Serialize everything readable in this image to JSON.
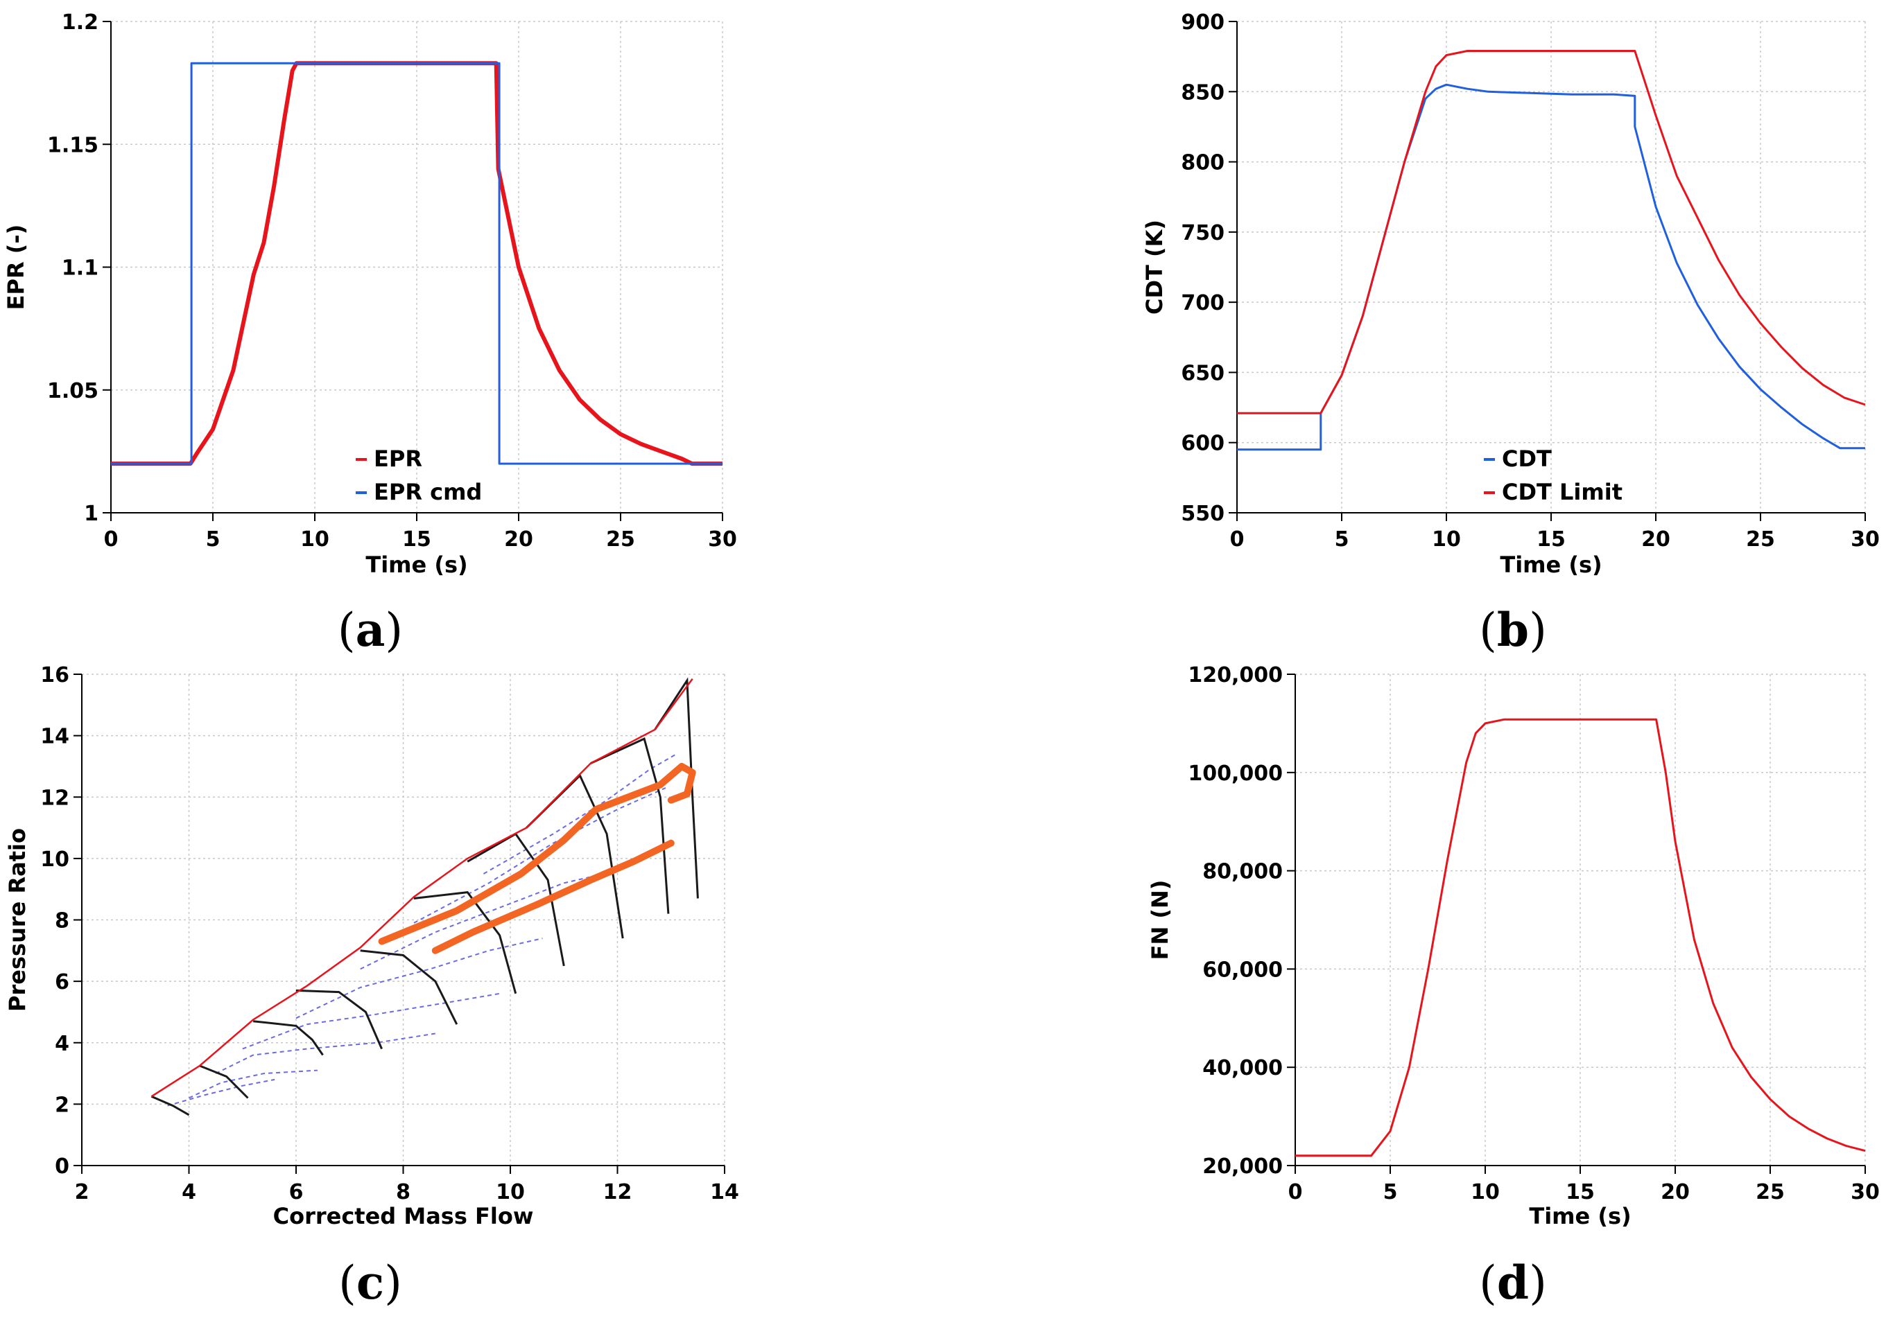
{
  "figure": {
    "panel_labels": [
      {
        "open": "(",
        "letter": "a",
        "close": ")"
      },
      {
        "open": "(",
        "letter": "b",
        "close": ")"
      },
      {
        "open": "(",
        "letter": "c",
        "close": ")"
      },
      {
        "open": "(",
        "letter": "d",
        "close": ")"
      }
    ]
  },
  "chart_data": [
    {
      "id": "a",
      "type": "line",
      "title": "",
      "xlabel": "Time (s)",
      "ylabel": "EPR (-)",
      "xlim": [
        0,
        30
      ],
      "ylim": [
        1,
        1.2
      ],
      "xticks": [
        0,
        5,
        10,
        15,
        20,
        25,
        30
      ],
      "xtick_labels": [
        "0",
        "5",
        "10",
        "15",
        "20",
        "25",
        "30"
      ],
      "yticks": [
        1,
        1.05,
        1.1,
        1.15,
        1.2
      ],
      "ytick_labels": [
        "1",
        "1.05",
        "1.1",
        "1.15",
        "1.2"
      ],
      "grid": true,
      "legend": "bottom-center",
      "series": [
        {
          "name": "EPR",
          "color": "#e8141c",
          "x": [
            0,
            3.9,
            4.2,
            5,
            6,
            7,
            7.5,
            8,
            8.5,
            8.9,
            9.1,
            18.9,
            19.0,
            19.5,
            20,
            21,
            22,
            23,
            24,
            25,
            26,
            27,
            28,
            28.5,
            30
          ],
          "y": [
            1.02,
            1.02,
            1.024,
            1.034,
            1.058,
            1.097,
            1.11,
            1.133,
            1.16,
            1.18,
            1.183,
            1.183,
            1.14,
            1.12,
            1.1,
            1.075,
            1.058,
            1.046,
            1.038,
            1.032,
            1.028,
            1.025,
            1.022,
            1.02,
            1.02
          ]
        },
        {
          "name": "EPR cmd",
          "color": "#1f5fe0",
          "x": [
            0,
            3.95,
            3.95,
            19.05,
            19.05,
            30
          ],
          "y": [
            1.02,
            1.02,
            1.183,
            1.183,
            1.02,
            1.02
          ]
        }
      ]
    },
    {
      "id": "b",
      "type": "line",
      "title": "",
      "xlabel": "Time (s)",
      "ylabel": "CDT (K)",
      "xlim": [
        0,
        30
      ],
      "ylim": [
        550,
        900
      ],
      "xticks": [
        0,
        5,
        10,
        15,
        20,
        25,
        30
      ],
      "xtick_labels": [
        "0",
        "5",
        "10",
        "15",
        "20",
        "25",
        "30"
      ],
      "yticks": [
        550,
        600,
        650,
        700,
        750,
        800,
        850,
        900
      ],
      "ytick_labels": [
        "550",
        "600",
        "650",
        "700",
        "750",
        "800",
        "850",
        "900"
      ],
      "grid": true,
      "legend": "bottom-center",
      "series": [
        {
          "name": "CDT",
          "color": "#1f5fe0",
          "x": [
            0,
            4,
            4,
            5,
            6,
            7,
            8,
            9,
            9.5,
            10,
            11,
            12,
            14,
            16,
            18,
            19,
            19,
            20,
            21,
            22,
            23,
            24,
            25,
            26,
            27,
            28,
            28.8,
            30
          ],
          "y": [
            595,
            595,
            621,
            648,
            690,
            745,
            800,
            845,
            852,
            855,
            852,
            850,
            849,
            848,
            848,
            847,
            825,
            768,
            728,
            698,
            674,
            654,
            638,
            625,
            613,
            603,
            596,
            596
          ]
        },
        {
          "name": "CDT Limit",
          "color": "#e8141c",
          "x": [
            0,
            4,
            5,
            6,
            7,
            8,
            9,
            9.5,
            10,
            11,
            12,
            15,
            19,
            20,
            21,
            22,
            23,
            24,
            25,
            26,
            27,
            28,
            29,
            30
          ],
          "y": [
            621,
            621,
            648,
            690,
            745,
            800,
            850,
            868,
            876,
            879,
            879,
            879,
            879,
            833,
            790,
            760,
            730,
            705,
            685,
            668,
            653,
            641,
            632,
            627
          ]
        }
      ]
    },
    {
      "id": "c",
      "type": "line",
      "title": "",
      "xlabel": "Corrected Mass Flow",
      "ylabel": "Pressure Ratio",
      "xlim": [
        2,
        14
      ],
      "ylim": [
        0,
        16
      ],
      "xticks": [
        2,
        4,
        6,
        8,
        10,
        12,
        14
      ],
      "xtick_labels": [
        "2",
        "4",
        "6",
        "8",
        "10",
        "12",
        "14"
      ],
      "yticks": [
        0,
        2,
        4,
        6,
        8,
        10,
        12,
        14,
        16
      ],
      "ytick_labels": [
        "0",
        "2",
        "4",
        "6",
        "8",
        "10",
        "12",
        "14",
        "16"
      ],
      "grid": true,
      "legend": "none",
      "surge_line": {
        "color": "#e8141c",
        "x": [
          3.3,
          4.2,
          5.2,
          6.2,
          7.2,
          8.2,
          9.2,
          10.3,
          11.5,
          12.7,
          13.4
        ],
        "y": [
          2.25,
          3.25,
          4.75,
          5.85,
          7.1,
          8.75,
          10.0,
          11.0,
          13.1,
          14.2,
          15.85
        ]
      },
      "speed_lines": [
        {
          "x": [
            3.3,
            3.7,
            4.0
          ],
          "y": [
            2.25,
            1.95,
            1.65
          ]
        },
        {
          "x": [
            4.2,
            4.7,
            5.1
          ],
          "y": [
            3.25,
            2.9,
            2.2
          ]
        },
        {
          "x": [
            5.2,
            6.0,
            6.3,
            6.5
          ],
          "y": [
            4.7,
            4.55,
            4.1,
            3.6
          ]
        },
        {
          "x": [
            6.0,
            6.8,
            7.3,
            7.6
          ],
          "y": [
            5.7,
            5.65,
            5.0,
            3.8
          ]
        },
        {
          "x": [
            7.2,
            8.0,
            8.6,
            9.0
          ],
          "y": [
            7.0,
            6.85,
            6.0,
            4.6
          ]
        },
        {
          "x": [
            8.2,
            9.2,
            9.8,
            10.1
          ],
          "y": [
            8.7,
            8.9,
            7.5,
            5.6
          ]
        },
        {
          "x": [
            9.2,
            10.1,
            10.7,
            11.0
          ],
          "y": [
            9.9,
            10.8,
            9.3,
            6.5
          ]
        },
        {
          "x": [
            10.3,
            11.3,
            11.8,
            12.1
          ],
          "y": [
            11.0,
            12.7,
            10.8,
            7.4
          ]
        },
        {
          "x": [
            11.5,
            12.5,
            12.8,
            12.95
          ],
          "y": [
            13.1,
            13.9,
            12.0,
            8.2
          ]
        },
        {
          "x": [
            12.7,
            13.3,
            13.4,
            13.5
          ],
          "y": [
            14.2,
            15.8,
            12.0,
            8.7
          ]
        }
      ],
      "efficiency_contours": [
        {
          "x": [
            3.6,
            4.3,
            5.0,
            5.6
          ],
          "y": [
            1.95,
            2.3,
            2.6,
            2.8
          ]
        },
        {
          "x": [
            4.0,
            4.6,
            5.4,
            6.4
          ],
          "y": [
            2.2,
            2.7,
            3.0,
            3.1
          ]
        },
        {
          "x": [
            4.5,
            5.2,
            6.2,
            7.5,
            8.6
          ],
          "y": [
            3.0,
            3.6,
            3.8,
            4.0,
            4.3
          ]
        },
        {
          "x": [
            5.0,
            6.2,
            7.4,
            8.8,
            9.8
          ],
          "y": [
            3.8,
            4.6,
            4.9,
            5.3,
            5.6
          ]
        },
        {
          "x": [
            6.0,
            7.2,
            8.5,
            9.6,
            10.6
          ],
          "y": [
            4.8,
            5.8,
            6.4,
            7.0,
            7.4
          ]
        },
        {
          "x": [
            7.2,
            8.6,
            9.8,
            11.0,
            12.0
          ],
          "y": [
            6.4,
            7.6,
            8.4,
            9.2,
            9.6
          ]
        },
        {
          "x": [
            8.2,
            9.6,
            10.8,
            12.0,
            12.9
          ],
          "y": [
            7.9,
            9.2,
            10.5,
            11.6,
            12.3
          ]
        },
        {
          "x": [
            9.5,
            10.8,
            11.8,
            12.6,
            13.1
          ],
          "y": [
            9.5,
            10.8,
            11.9,
            12.9,
            13.4
          ]
        }
      ],
      "operating_lines": [
        {
          "color": "#f26522",
          "x": [
            7.6,
            9.0,
            10.2,
            11.0,
            11.6,
            12.2,
            12.8,
            13.2,
            13.4,
            13.3,
            13.0
          ],
          "y": [
            7.3,
            8.3,
            9.5,
            10.6,
            11.6,
            12.0,
            12.4,
            13.0,
            12.8,
            12.1,
            11.9
          ]
        },
        {
          "color": "#f26522",
          "x": [
            8.6,
            9.3,
            10.5,
            11.5,
            12.3,
            13.0
          ],
          "y": [
            7.0,
            7.6,
            8.5,
            9.3,
            9.9,
            10.5
          ]
        }
      ]
    },
    {
      "id": "d",
      "type": "line",
      "title": "",
      "xlabel": "Time (s)",
      "ylabel": "FN (N)",
      "xlim": [
        0,
        30
      ],
      "ylim": [
        20000,
        120000
      ],
      "xticks": [
        0,
        5,
        10,
        15,
        20,
        25,
        30
      ],
      "xtick_labels": [
        "0",
        "5",
        "10",
        "15",
        "20",
        "25",
        "30"
      ],
      "yticks": [
        20000,
        40000,
        60000,
        80000,
        100000,
        120000
      ],
      "ytick_labels": [
        "20,000",
        "40,000",
        "60,000",
        "80,000",
        "100,000",
        "120,000"
      ],
      "grid": true,
      "legend": "none",
      "series": [
        {
          "name": "FN",
          "color": "#e8141c",
          "x": [
            0,
            4,
            5,
            6,
            7,
            8,
            9,
            9.5,
            10,
            11,
            12,
            19,
            19.5,
            20,
            21,
            22,
            23,
            24,
            25,
            26,
            27,
            28,
            29,
            30
          ],
          "y": [
            22000,
            22000,
            27000,
            40000,
            60000,
            82000,
            102000,
            108000,
            110000,
            110800,
            110800,
            110800,
            100000,
            86000,
            66000,
            53000,
            44000,
            38000,
            33500,
            30000,
            27500,
            25500,
            24000,
            23000
          ]
        }
      ]
    }
  ]
}
